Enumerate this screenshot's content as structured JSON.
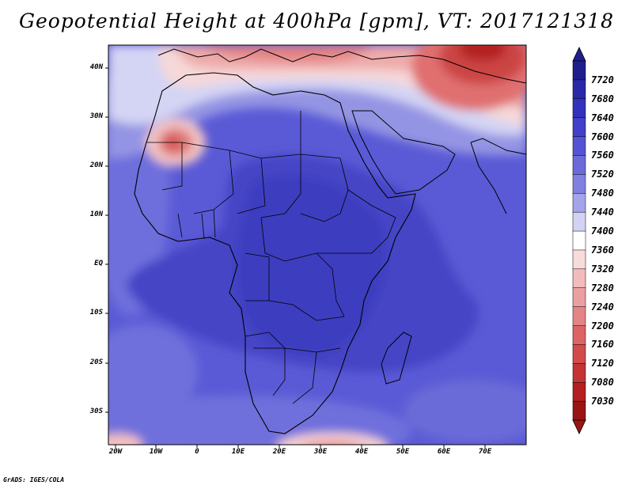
{
  "title": "Geopotential Height at 400hPa [gpm], VT: 2017121318",
  "credit": "GrADS: IGES/COLA",
  "map": {
    "lat_labels": [
      "40N",
      "30N",
      "20N",
      "10N",
      "EQ",
      "10S",
      "20S",
      "30S"
    ],
    "lon_labels": [
      "20W",
      "10W",
      "0",
      "10E",
      "20E",
      "30E",
      "40E",
      "50E",
      "60E",
      "70E"
    ],
    "background_level_color": "#4040c8"
  },
  "colorbar": {
    "levels": [
      "7720",
      "7680",
      "7640",
      "7600",
      "7560",
      "7520",
      "7480",
      "7440",
      "7400",
      "7360",
      "7320",
      "7280",
      "7240",
      "7200",
      "7160",
      "7120",
      "7080",
      "7030"
    ],
    "colors": [
      "#1e1e8c",
      "#2828a8",
      "#3232bc",
      "#4040c8",
      "#5454d2",
      "#6a6ad8",
      "#8080e0",
      "#a4a4ea",
      "#d2d2f4",
      "#ffffff",
      "#f8dcdc",
      "#f2bcbc",
      "#eaa0a0",
      "#e48484",
      "#dc6464",
      "#d24a4a",
      "#c43434",
      "#b42020",
      "#9a1414"
    ]
  }
}
